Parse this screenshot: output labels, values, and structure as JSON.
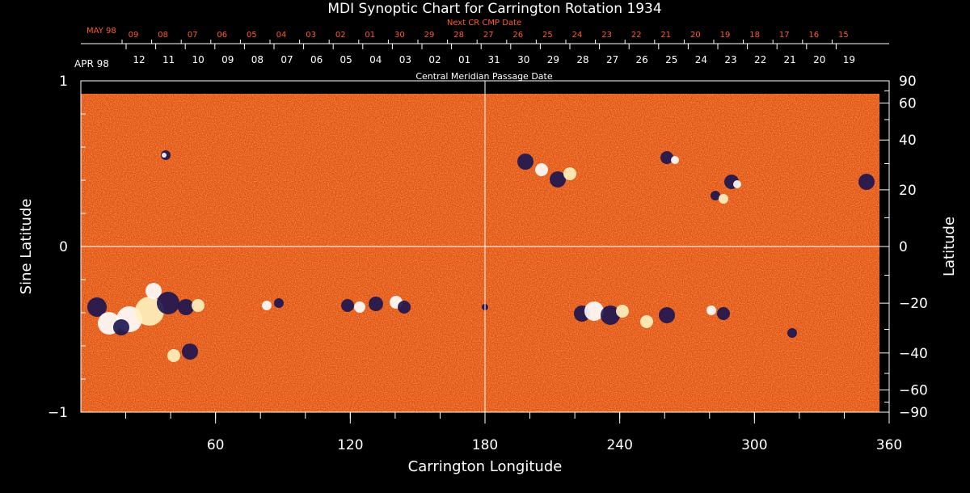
{
  "chart_data": {
    "type": "heatmap",
    "title": "MDI Synoptic Chart for Carrington Rotation 1934",
    "xlabel": "Carrington Longitude",
    "ylabel_left": "Sine Latitude",
    "ylabel_right": "Latitude",
    "xlim": [
      0,
      360
    ],
    "ylim": [
      -1,
      1
    ],
    "x_ticks": [
      60,
      120,
      180,
      240,
      300,
      360
    ],
    "y_ticks_left": [
      "1",
      "0",
      "−1"
    ],
    "y_ticks_right": [
      90,
      60,
      40,
      20,
      0,
      -20,
      -40,
      -60,
      -90
    ],
    "grid": "cross at longitude 180 and sine latitude 0",
    "colors": {
      "background": "#e8501a",
      "positive": "#ffffff",
      "negative": "#1a1450",
      "next_cr_axis": "#ff5a2a"
    },
    "next_cr_axis": {
      "label": "Next CR CMP Date",
      "month": "MAY 98",
      "dates": [
        "09",
        "08",
        "07",
        "06",
        "05",
        "04",
        "03",
        "02",
        "01",
        "30",
        "29",
        "28",
        "27",
        "26",
        "25",
        "24",
        "23",
        "22",
        "21",
        "20",
        "19",
        "18",
        "17",
        "16",
        "15"
      ]
    },
    "cmp_axis": {
      "label": "Central Meridian Passage Date",
      "month": "APR 98",
      "dates": [
        "12",
        "11",
        "10",
        "09",
        "08",
        "07",
        "06",
        "05",
        "04",
        "03",
        "02",
        "01",
        "31",
        "30",
        "29",
        "28",
        "27",
        "26",
        "25",
        "24",
        "23",
        "22",
        "21",
        "20",
        "19"
      ]
    }
  }
}
